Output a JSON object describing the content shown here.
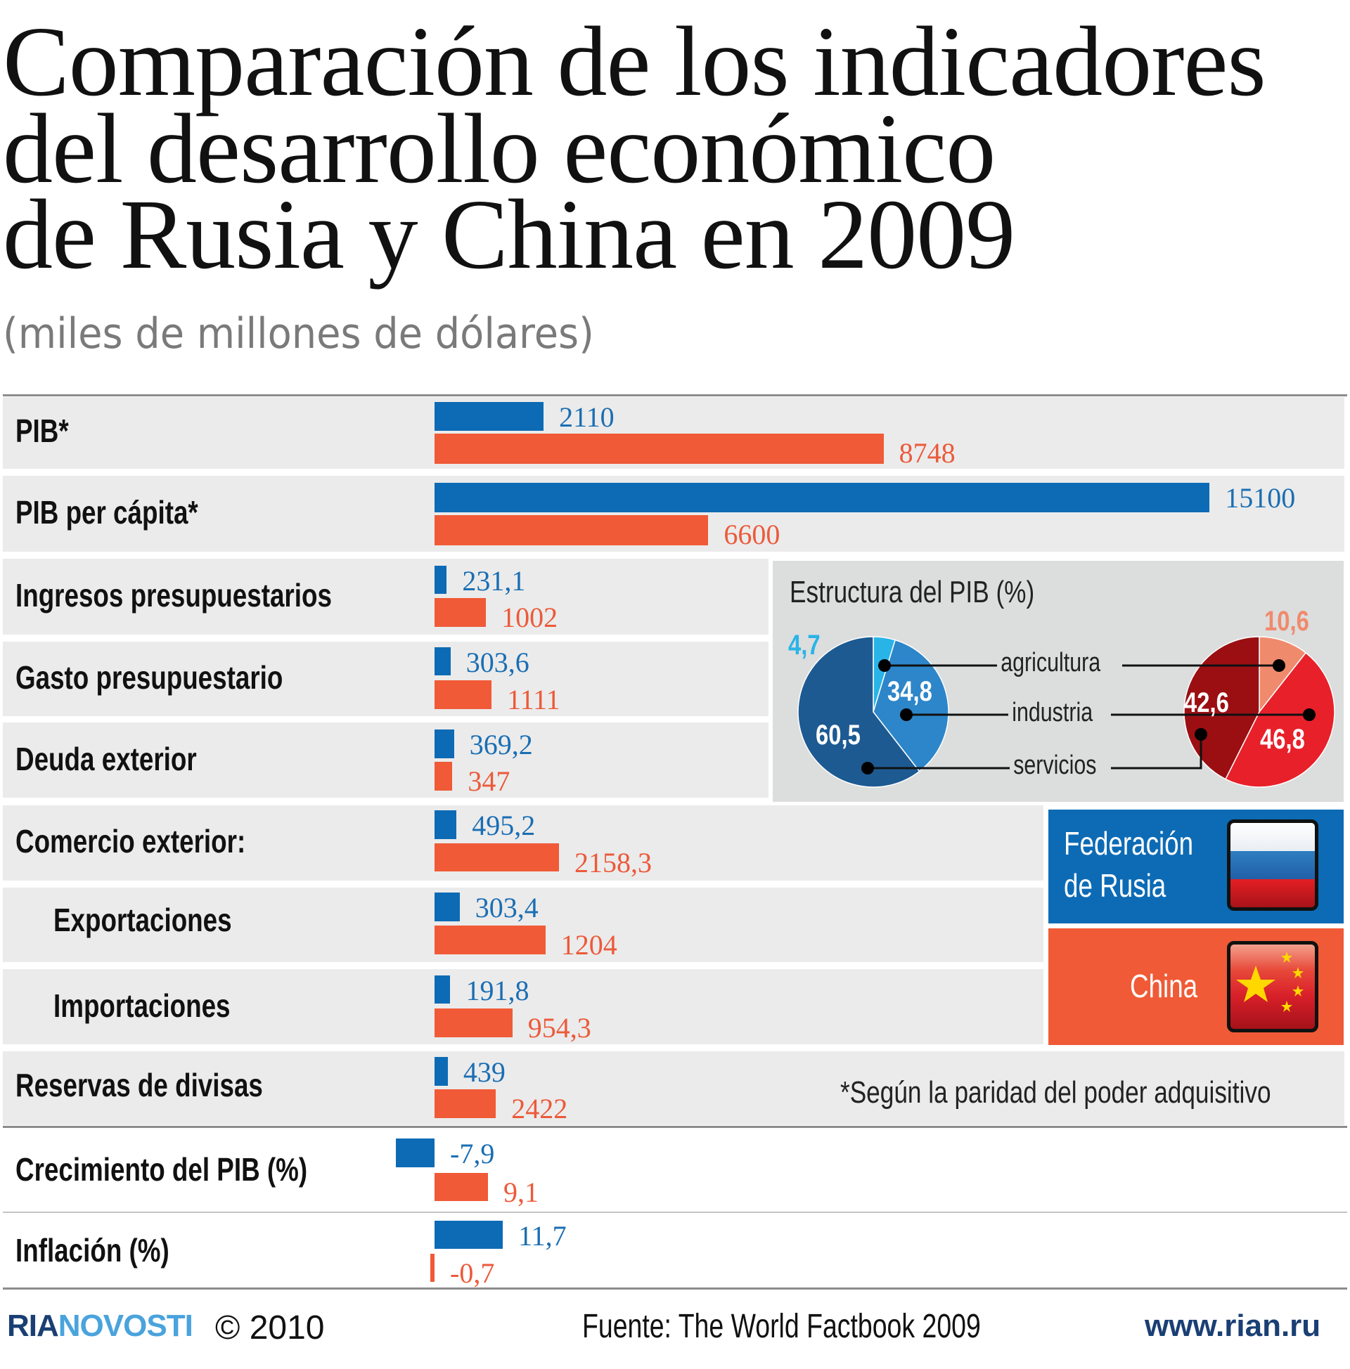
{
  "header": {
    "title_lines": [
      "Comparación de los indicadores",
      "del desarrollo económico",
      "de Rusia y China en 2009"
    ],
    "subtitle": "(miles de millones de dólares)"
  },
  "colors": {
    "russia": "#0d6bb5",
    "china": "#f05a37",
    "row_background": "#ebebeb",
    "pie_background": "#dcdddd"
  },
  "chart_data": [
    {
      "type": "bar",
      "orientation": "horizontal",
      "title": "Comparación de los indicadores del desarrollo económico de Rusia y China en 2009",
      "subtitle": "(miles de millones de dólares)",
      "categories": [
        "PIB*",
        "PIB per cápita*",
        "Ingresos presupuestarios",
        "Gasto presupuestario",
        "Deuda exterior",
        "Comercio exterior:",
        "Exportaciones",
        "Importaciones",
        "Reservas de divisas",
        "Crecimiento del PIB (%)",
        "Inflación (%)"
      ],
      "series": [
        {
          "name": "Federación de Rusia",
          "color": "#0d6bb5",
          "values": [
            2110,
            15100,
            231.1,
            303.6,
            369.2,
            495.2,
            303.4,
            191.8,
            439,
            -7.9,
            11.7
          ],
          "labels": [
            "2110",
            "15100",
            "231,1",
            "303,6",
            "369,2",
            "495,2",
            "303,4",
            "191,8",
            "439",
            "-7,9",
            "11,7"
          ]
        },
        {
          "name": "China",
          "color": "#f05a37",
          "values": [
            8748,
            6600,
            1002,
            1111,
            347,
            2158.3,
            1204,
            954.3,
            2422,
            9.1,
            -0.7
          ],
          "labels": [
            "8748",
            "6600",
            "1002",
            "1111",
            "347",
            "2158,3",
            "1204",
            "954,3",
            "2422",
            "9,1",
            "-0,7"
          ]
        }
      ],
      "legend": [
        "Federación de Rusia",
        "China"
      ],
      "legend_placement": "right",
      "footnote": "*Según la paridad del poder adquisitivo"
    },
    {
      "type": "pie",
      "title": "Estructura del PIB (%)",
      "categories": [
        "agricultura",
        "industria",
        "servicios"
      ],
      "series": [
        {
          "name": "Federación de Rusia",
          "values": [
            4.7,
            34.8,
            60.5
          ],
          "labels": [
            "4,7",
            "34,8",
            "60,5"
          ],
          "colors": [
            "#29b4e8",
            "#2d86c9",
            "#1d5a92"
          ]
        },
        {
          "name": "China",
          "values": [
            10.6,
            46.8,
            42.6
          ],
          "labels": [
            "10,6",
            "46,8",
            "42,6"
          ],
          "colors": [
            "#f08a6c",
            "#e8202a",
            "#9b0f13"
          ]
        }
      ]
    }
  ],
  "legend": {
    "russia_label_lines": [
      "Federación",
      "de Rusia"
    ],
    "china_label": "China"
  },
  "footer": {
    "logo_part1": "RIA",
    "logo_part2": "NOVOSTI",
    "copyright": "© 2010",
    "source": "Fuente: The World Factbook 2009",
    "url": "www.rian.ru"
  }
}
